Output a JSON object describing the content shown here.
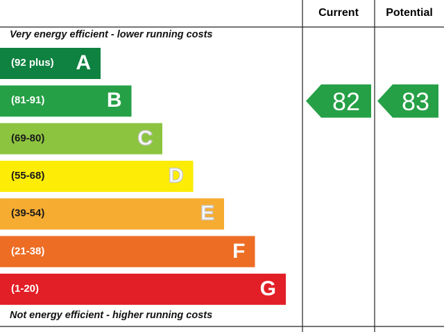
{
  "columns": {
    "current": "Current",
    "potential": "Potential"
  },
  "top_note": "Very energy efficient - lower running costs",
  "bottom_note": "Not energy efficient - higher running costs",
  "chart_data": {
    "type": "bar",
    "bands": [
      {
        "range": "(92 plus)",
        "letter": "A",
        "color": "#0f8140"
      },
      {
        "range": "(81-91)",
        "letter": "B",
        "color": "#26a046"
      },
      {
        "range": "(69-80)",
        "letter": "C",
        "color": "#8cc43f"
      },
      {
        "range": "(55-68)",
        "letter": "D",
        "color": "#fcec06"
      },
      {
        "range": "(39-54)",
        "letter": "E",
        "color": "#f6ac31"
      },
      {
        "range": "(21-38)",
        "letter": "F",
        "color": "#ed6d25"
      },
      {
        "range": "(1-20)",
        "letter": "G",
        "color": "#e21f26"
      }
    ],
    "current": {
      "value": 82,
      "band": "B",
      "color": "#26a046"
    },
    "potential": {
      "value": 83,
      "band": "B",
      "color": "#26a046"
    }
  }
}
